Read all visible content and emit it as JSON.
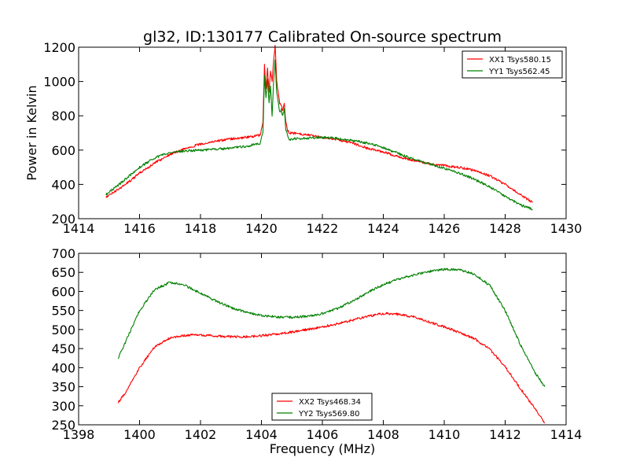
{
  "chart_data": [
    {
      "type": "line",
      "title": "gl32, ID:130177 Calibrated On-source spectrum",
      "xlabel": "",
      "ylabel": "Power in Kelvin",
      "xlim": [
        1414,
        1430
      ],
      "ylim": [
        200,
        1200
      ],
      "x_ticks": [
        1414,
        1416,
        1418,
        1420,
        1422,
        1424,
        1426,
        1428,
        1430
      ],
      "y_ticks": [
        200,
        400,
        600,
        800,
        1000,
        1200
      ],
      "legend_position": "top-right",
      "series": [
        {
          "name": "XX1 Tsys580.15",
          "color": "#ff0000",
          "x": [
            1414.9,
            1415.5,
            1416.0,
            1416.5,
            1417.0,
            1417.5,
            1418.0,
            1418.5,
            1419.0,
            1419.5,
            1419.95,
            1420.05,
            1420.1,
            1420.15,
            1420.2,
            1420.25,
            1420.3,
            1420.35,
            1420.4,
            1420.45,
            1420.5,
            1420.55,
            1420.6,
            1420.65,
            1420.7,
            1420.75,
            1420.8,
            1420.85,
            1420.9,
            1420.95,
            1421.0,
            1421.5,
            1422.0,
            1422.5,
            1423.0,
            1423.5,
            1424.0,
            1424.5,
            1425.0,
            1425.5,
            1426.0,
            1426.5,
            1427.0,
            1427.5,
            1428.0,
            1428.5,
            1428.9
          ],
          "y": [
            325,
            395,
            465,
            525,
            575,
            610,
            635,
            652,
            665,
            675,
            685,
            760,
            1095,
            960,
            1080,
            935,
            1060,
            1000,
            1120,
            1210,
            1000,
            940,
            870,
            860,
            830,
            870,
            760,
            720,
            705,
            700,
            700,
            690,
            675,
            660,
            640,
            610,
            590,
            560,
            540,
            520,
            510,
            500,
            480,
            450,
            400,
            340,
            295
          ]
        },
        {
          "name": "YY1 Tsys562.45",
          "color": "#008000",
          "x": [
            1414.9,
            1415.5,
            1416.0,
            1416.5,
            1417.0,
            1417.5,
            1418.0,
            1418.5,
            1419.0,
            1419.5,
            1419.95,
            1420.05,
            1420.1,
            1420.15,
            1420.2,
            1420.25,
            1420.3,
            1420.35,
            1420.4,
            1420.45,
            1420.5,
            1420.55,
            1420.6,
            1420.65,
            1420.7,
            1420.75,
            1420.8,
            1420.85,
            1420.9,
            1420.95,
            1421.0,
            1421.5,
            1422.0,
            1422.5,
            1423.0,
            1423.5,
            1424.0,
            1424.5,
            1425.0,
            1425.5,
            1426.0,
            1426.5,
            1427.0,
            1427.5,
            1428.0,
            1428.5,
            1428.9
          ],
          "y": [
            340,
            425,
            500,
            555,
            585,
            595,
            600,
            605,
            612,
            622,
            640,
            700,
            1040,
            900,
            1020,
            880,
            980,
            800,
            1000,
            1120,
            940,
            880,
            820,
            835,
            800,
            840,
            720,
            690,
            665,
            662,
            665,
            670,
            675,
            668,
            655,
            640,
            615,
            580,
            545,
            520,
            495,
            465,
            430,
            385,
            330,
            280,
            255
          ]
        }
      ]
    },
    {
      "type": "line",
      "title": "",
      "xlabel": "Frequency (MHz)",
      "ylabel": "",
      "xlim": [
        1398,
        1414
      ],
      "ylim": [
        250,
        700
      ],
      "x_ticks": [
        1398,
        1400,
        1402,
        1404,
        1406,
        1408,
        1410,
        1412,
        1414
      ],
      "y_ticks": [
        250,
        300,
        350,
        400,
        450,
        500,
        550,
        600,
        650,
        700
      ],
      "legend_position": "bottom-center",
      "series": [
        {
          "name": "XX2 Tsys468.34",
          "color": "#ff0000",
          "x": [
            1399.3,
            1399.5,
            1400.0,
            1400.5,
            1401.0,
            1401.5,
            1402.0,
            1402.5,
            1403.0,
            1403.5,
            1404.0,
            1404.5,
            1405.0,
            1405.5,
            1406.0,
            1406.5,
            1407.0,
            1407.5,
            1408.0,
            1408.5,
            1409.0,
            1409.5,
            1410.0,
            1410.5,
            1411.0,
            1411.5,
            1412.0,
            1412.5,
            1413.0,
            1413.3
          ],
          "y": [
            308,
            330,
            400,
            455,
            478,
            485,
            486,
            483,
            481,
            481,
            484,
            488,
            493,
            500,
            507,
            515,
            525,
            535,
            542,
            540,
            533,
            520,
            507,
            492,
            475,
            448,
            402,
            345,
            290,
            255
          ]
        },
        {
          "name": "YY2 Tsys569.80",
          "color": "#008000",
          "x": [
            1399.3,
            1399.5,
            1400.0,
            1400.5,
            1401.0,
            1401.5,
            1402.0,
            1402.5,
            1403.0,
            1403.5,
            1404.0,
            1404.5,
            1405.0,
            1405.5,
            1406.0,
            1406.5,
            1407.0,
            1407.5,
            1408.0,
            1408.5,
            1409.0,
            1409.5,
            1410.0,
            1410.5,
            1411.0,
            1411.5,
            1412.0,
            1412.5,
            1413.0,
            1413.3
          ],
          "y": [
            425,
            460,
            550,
            605,
            624,
            615,
            595,
            575,
            558,
            545,
            537,
            533,
            532,
            535,
            542,
            555,
            575,
            598,
            618,
            632,
            643,
            652,
            658,
            657,
            645,
            615,
            550,
            460,
            385,
            350
          ]
        }
      ]
    }
  ]
}
